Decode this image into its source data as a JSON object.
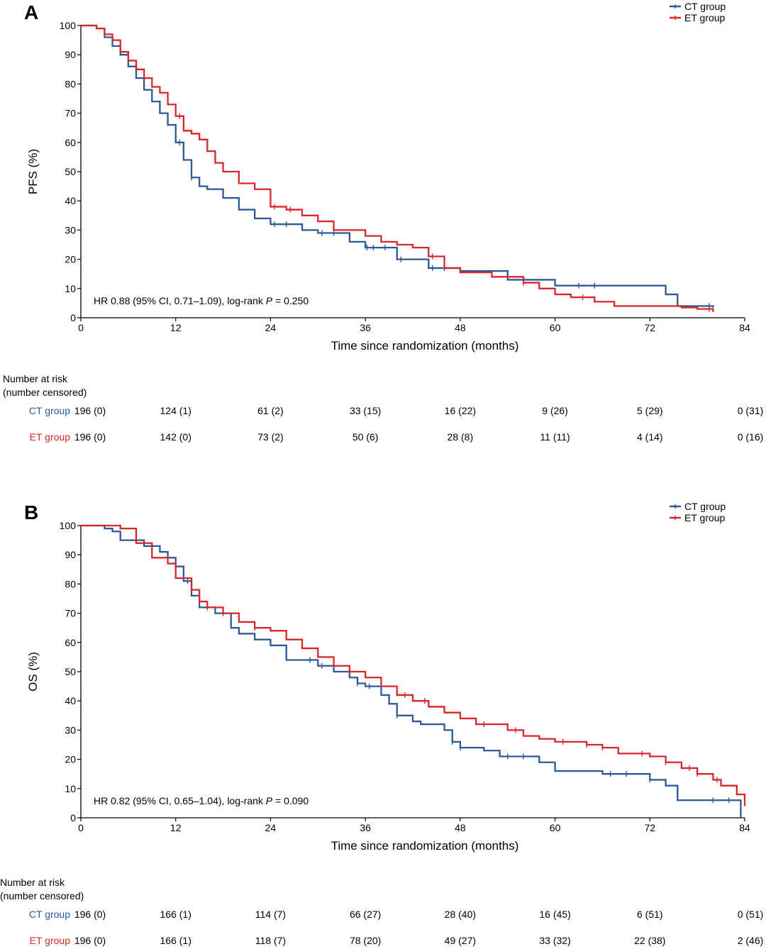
{
  "colors": {
    "ct": "#2c5a96",
    "et": "#d9262b",
    "axis": "#000000"
  },
  "panels": [
    {
      "id": "A",
      "letter": "A",
      "legend": [
        "CT group",
        "ET group"
      ],
      "risk": {
        "title_line1": "Number at risk",
        "title_line2": "(number censored)",
        "ct_label": "CT group",
        "et_label": "ET group",
        "ct": [
          "196 (0)",
          "124 (1)",
          "61 (2)",
          "33 (15)",
          "16 (22)",
          "9 (26)",
          "5 (29)",
          "0 (31)"
        ],
        "et": [
          "196 (0)",
          "142 (0)",
          "73 (2)",
          "50 (6)",
          "28 (8)",
          "11 (11)",
          "4 (14)",
          "0 (16)"
        ]
      }
    },
    {
      "id": "B",
      "letter": "B",
      "legend": [
        "CT group",
        "ET group"
      ],
      "risk": {
        "title_line1": "Number at risk",
        "title_line2": "(number censored)",
        "ct_label": "CT group",
        "et_label": "ET group",
        "ct": [
          "196 (0)",
          "166 (1)",
          "114 (7)",
          "66 (27)",
          "28 (40)",
          "16 (45)",
          "6 (51)",
          "0 (51)"
        ],
        "et": [
          "196 (0)",
          "166 (1)",
          "118 (7)",
          "78 (20)",
          "49 (27)",
          "33 (32)",
          "22 (38)",
          "2 (46)"
        ]
      }
    }
  ],
  "chart_data": [
    {
      "type": "line",
      "subtype": "kaplan-meier",
      "panel": "A",
      "title": "",
      "xlabel": "Time since randomization (months)",
      "ylabel": "PFS (%)",
      "xlim": [
        0,
        84
      ],
      "ylim": [
        0,
        100
      ],
      "xticks": [
        0,
        12,
        24,
        36,
        48,
        60,
        72,
        84
      ],
      "yticks": [
        0,
        10,
        20,
        30,
        40,
        50,
        60,
        70,
        80,
        90,
        100
      ],
      "annotation": {
        "prefix": "HR 0.88 (95% CI, 0.71–1.09), log-rank ",
        "p": "P",
        "suffix": " = 0.250"
      },
      "legend_position": "top-right",
      "series": [
        {
          "name": "CT group",
          "color": "#2c5a96",
          "x": [
            0,
            2,
            3,
            4,
            5,
            6,
            7,
            8,
            9,
            10,
            11,
            12,
            13,
            14,
            15,
            16,
            18,
            20,
            22,
            24,
            28,
            30,
            34,
            36,
            40,
            44,
            48,
            54,
            60,
            66,
            72,
            74,
            75.5,
            80
          ],
          "y": [
            100,
            99,
            96,
            93,
            90,
            86,
            82,
            78,
            74,
            70,
            66,
            60,
            54,
            48,
            45,
            44,
            41,
            37,
            34,
            32,
            30,
            29,
            26,
            24,
            20,
            17,
            16,
            13,
            11,
            11,
            11,
            8,
            4,
            3.5
          ],
          "censored_x": [
            12.5,
            14,
            24.5,
            26,
            30.5,
            32,
            36.2,
            37,
            38.5,
            40.5,
            44.5,
            46,
            63,
            65,
            79.5
          ]
        },
        {
          "name": "ET group",
          "color": "#d9262b",
          "x": [
            0,
            2,
            3,
            4,
            5,
            6,
            7,
            8,
            9,
            10,
            11,
            12,
            13,
            14,
            15,
            16,
            17,
            18,
            20,
            22,
            24,
            26,
            28,
            30,
            32,
            36,
            38,
            40,
            42,
            44,
            46,
            48,
            52,
            56,
            58,
            60,
            62,
            65,
            67.5,
            72,
            76,
            78,
            80
          ],
          "y": [
            100,
            99,
            97,
            95,
            91,
            88,
            85,
            82,
            79,
            77,
            73,
            69,
            64,
            63,
            61,
            57,
            53,
            50,
            46,
            44,
            38,
            37,
            35,
            33,
            30,
            28,
            26,
            25,
            24,
            21,
            17,
            15.5,
            14,
            12,
            10,
            8,
            7,
            5.5,
            4,
            4,
            3.5,
            3,
            2
          ],
          "censored_x": [
            12.5,
            24.5,
            26.5,
            44.5,
            56,
            63.5,
            79.5
          ]
        }
      ]
    },
    {
      "type": "line",
      "subtype": "kaplan-meier",
      "panel": "B",
      "title": "",
      "xlabel": "Time since randomization (months)",
      "ylabel": "OS (%)",
      "xlim": [
        0,
        84
      ],
      "ylim": [
        0,
        100
      ],
      "xticks": [
        0,
        12,
        24,
        36,
        48,
        60,
        72,
        84
      ],
      "yticks": [
        0,
        10,
        20,
        30,
        40,
        50,
        60,
        70,
        80,
        90,
        100
      ],
      "annotation": {
        "prefix": "HR 0.82 (95% CI, 0.65–1.04), log-rank ",
        "p": "P",
        "suffix": " = 0.090"
      },
      "legend_position": "top-right",
      "series": [
        {
          "name": "CT group",
          "color": "#2c5a96",
          "x": [
            0,
            3,
            4,
            5,
            8,
            10,
            11,
            12,
            13,
            14,
            15,
            17,
            19,
            20,
            22,
            24,
            26,
            28,
            30,
            32,
            34,
            35,
            36,
            38,
            39,
            40,
            42,
            43,
            46,
            47,
            48,
            51,
            53,
            58,
            60,
            64,
            66,
            70,
            72,
            74,
            75.5,
            80,
            83.5
          ],
          "y": [
            100,
            99,
            98,
            95,
            93,
            91,
            89,
            86,
            81,
            76,
            72,
            70,
            65,
            63,
            61,
            59,
            54,
            54,
            52,
            50,
            48,
            46,
            45,
            42,
            39,
            35,
            33,
            32,
            30,
            26,
            24,
            23,
            21,
            19,
            16,
            16,
            15,
            15,
            13,
            11,
            6,
            6,
            0
          ],
          "censored_x": [
            13.5,
            16,
            29,
            30.5,
            35,
            36.5,
            40,
            47,
            48,
            54,
            56,
            67,
            69,
            72,
            80,
            82
          ]
        },
        {
          "name": "ET group",
          "color": "#d9262b",
          "x": [
            0,
            4,
            5,
            7,
            9,
            11,
            12,
            14,
            15,
            16,
            18,
            20,
            22,
            24,
            26,
            28,
            30,
            32,
            34,
            36,
            38,
            40,
            42,
            44,
            46,
            48,
            50,
            54,
            56,
            58,
            60,
            64,
            66,
            68,
            72,
            74,
            76,
            78,
            80,
            81,
            83,
            84
          ],
          "y": [
            100,
            100,
            99,
            94,
            89,
            87,
            82,
            78,
            74,
            72,
            70,
            67,
            65,
            64,
            61,
            58,
            55,
            52,
            50,
            48,
            45,
            42,
            40,
            38,
            36,
            34,
            32,
            30,
            28,
            27,
            26,
            25,
            24,
            22,
            21,
            19,
            17,
            15,
            13,
            11,
            8,
            4
          ],
          "censored_x": [
            16,
            18,
            22,
            34,
            41,
            43.5,
            51,
            55,
            61,
            64,
            66,
            71,
            74,
            77,
            78,
            80.5
          ]
        }
      ]
    }
  ]
}
